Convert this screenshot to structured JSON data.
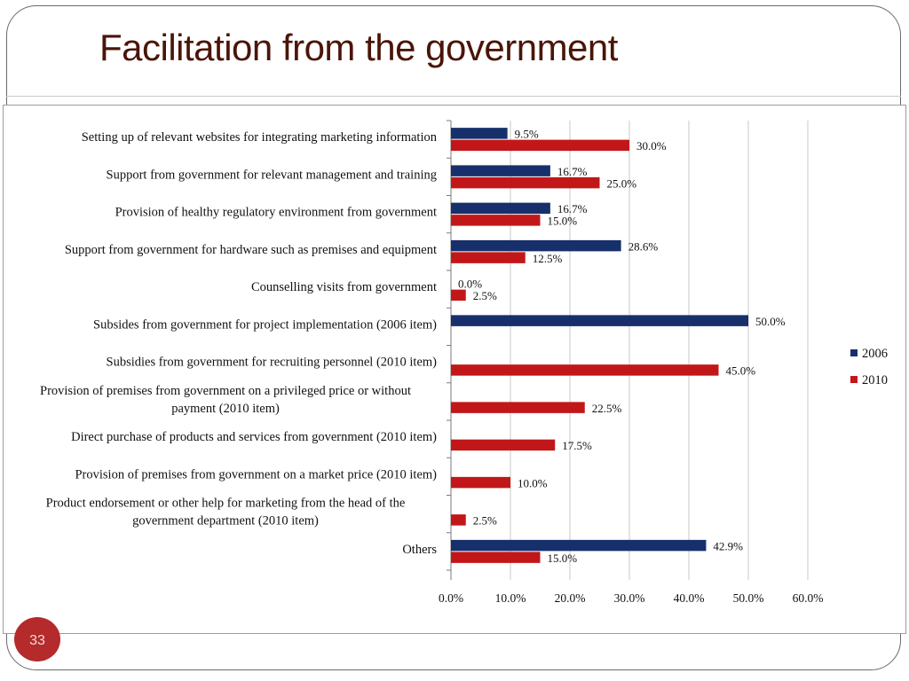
{
  "slide": {
    "title": "Facilitation from the government",
    "page_number": "33"
  },
  "colors": {
    "series_2006": "#17306b",
    "series_2010": "#c21718",
    "grid": "#c8c8c8"
  },
  "chart_data": {
    "type": "bar",
    "orientation": "horizontal",
    "title": "",
    "xlabel": "",
    "ylabel": "",
    "xlim": [
      0,
      60
    ],
    "ticks": [
      "0.0%",
      "10.0%",
      "20.0%",
      "30.0%",
      "40.0%",
      "50.0%",
      "60.0%"
    ],
    "grid": "vertical",
    "legend": "right",
    "categories": [
      [
        "Setting up of relevant websites for integrating marketing information"
      ],
      [
        "Support from government for relevant management and training"
      ],
      [
        "Provision of healthy regulatory environment from government"
      ],
      [
        "Support from government for hardware such as premises and equipment"
      ],
      [
        "Counselling visits from government"
      ],
      [
        "Subsides from government for project implementation (2006 item)"
      ],
      [
        "Subsidies from government for recruiting personnel  (2010 item)"
      ],
      [
        "Provision of premises from government on a privileged price or without",
        "payment  (2010 item)"
      ],
      [
        "Direct purchase of products and services from government  (2010 item)"
      ],
      [
        "Provision of premises from government on a market price  (2010 item)"
      ],
      [
        "Product endorsement or other help for marketing from the head of the",
        "government department (2010 item)"
      ],
      [
        "Others"
      ]
    ],
    "series": [
      {
        "name": "2006",
        "values": [
          9.5,
          16.7,
          16.7,
          28.6,
          0.0,
          50.0,
          null,
          null,
          null,
          null,
          null,
          42.9
        ],
        "labels": [
          "9.5%",
          "16.7%",
          "16.7%",
          "28.6%",
          "0.0%",
          "50.0%",
          null,
          null,
          null,
          null,
          null,
          "42.9%"
        ]
      },
      {
        "name": "2010",
        "values": [
          30.0,
          25.0,
          15.0,
          12.5,
          2.5,
          null,
          45.0,
          22.5,
          17.5,
          10.0,
          2.5,
          15.0
        ],
        "labels": [
          "30.0%",
          "25.0%",
          "15.0%",
          "12.5%",
          "2.5%",
          null,
          "45.0%",
          "22.5%",
          "17.5%",
          "10.0%",
          "2.5%",
          "15.0%"
        ]
      }
    ]
  }
}
